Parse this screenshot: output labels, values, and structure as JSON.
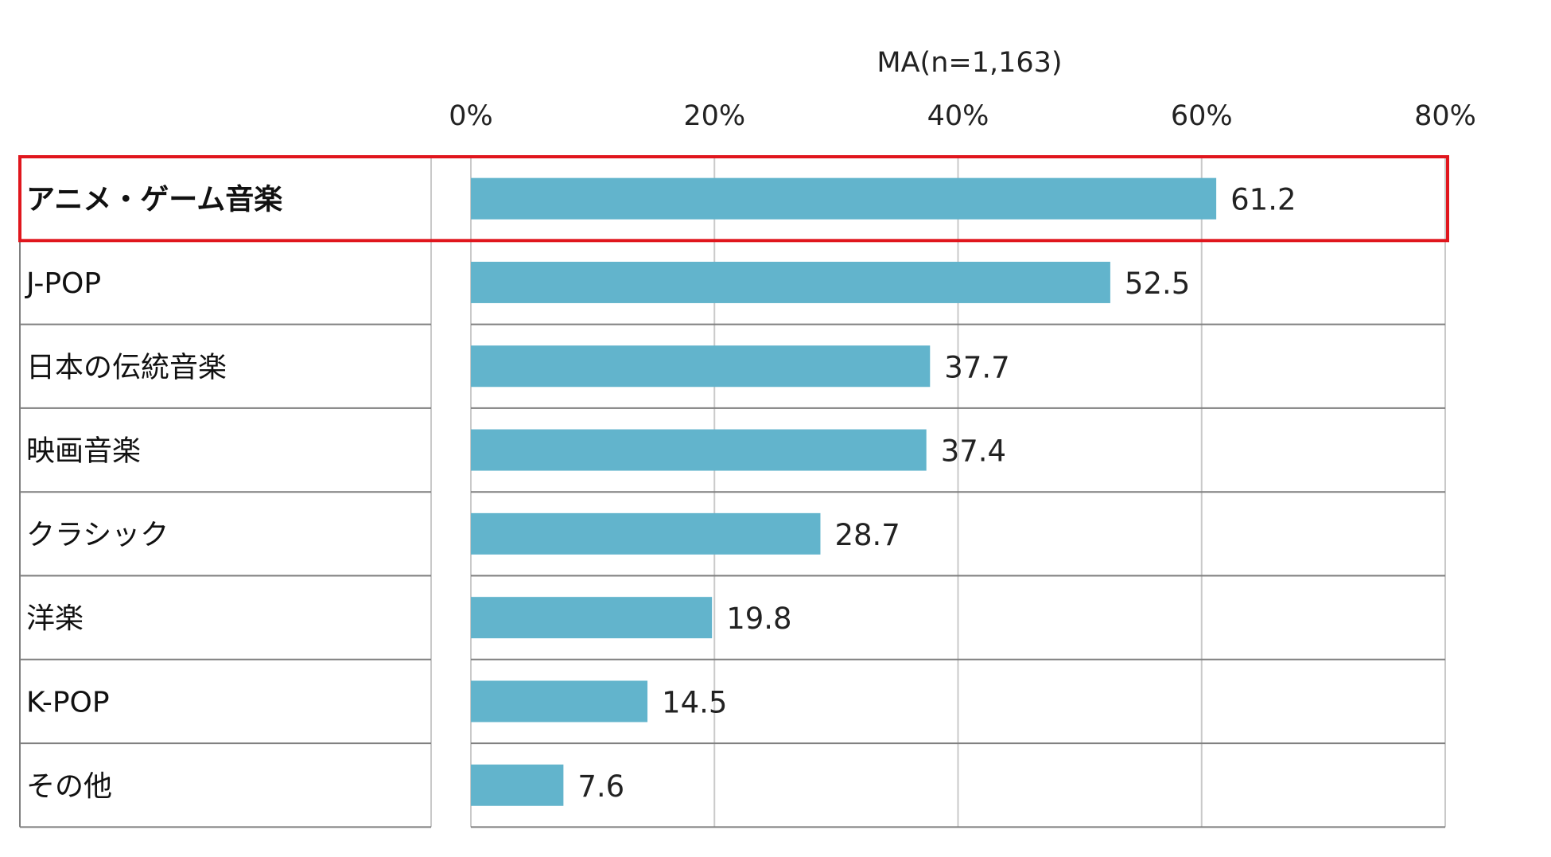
{
  "chart_data": {
    "type": "bar",
    "orientation": "horizontal",
    "note": "MA(n=1,163)",
    "categories": [
      "アニメ・ゲーム音楽",
      "J-POP",
      "日本の伝統音楽",
      "映画音楽",
      "クラシック",
      "洋楽",
      "K-POP",
      "その他"
    ],
    "values": [
      61.2,
      52.5,
      37.7,
      37.4,
      28.7,
      19.8,
      14.5,
      7.6
    ],
    "value_labels": [
      "61.2",
      "52.5",
      "37.7",
      "37.4",
      "28.7",
      "19.8",
      "14.5",
      "7.6"
    ],
    "x_ticks": [
      "0%",
      "20%",
      "40%",
      "60%",
      "80%"
    ],
    "xlim": [
      0,
      80
    ],
    "grid": true,
    "highlighted_category": "アニメ・ゲーム音楽",
    "colors": {
      "bar": "#62b4cc",
      "highlight_border": "#e0161d",
      "grid": "#c9c9c9",
      "row_line": "#7f7f7f"
    }
  }
}
